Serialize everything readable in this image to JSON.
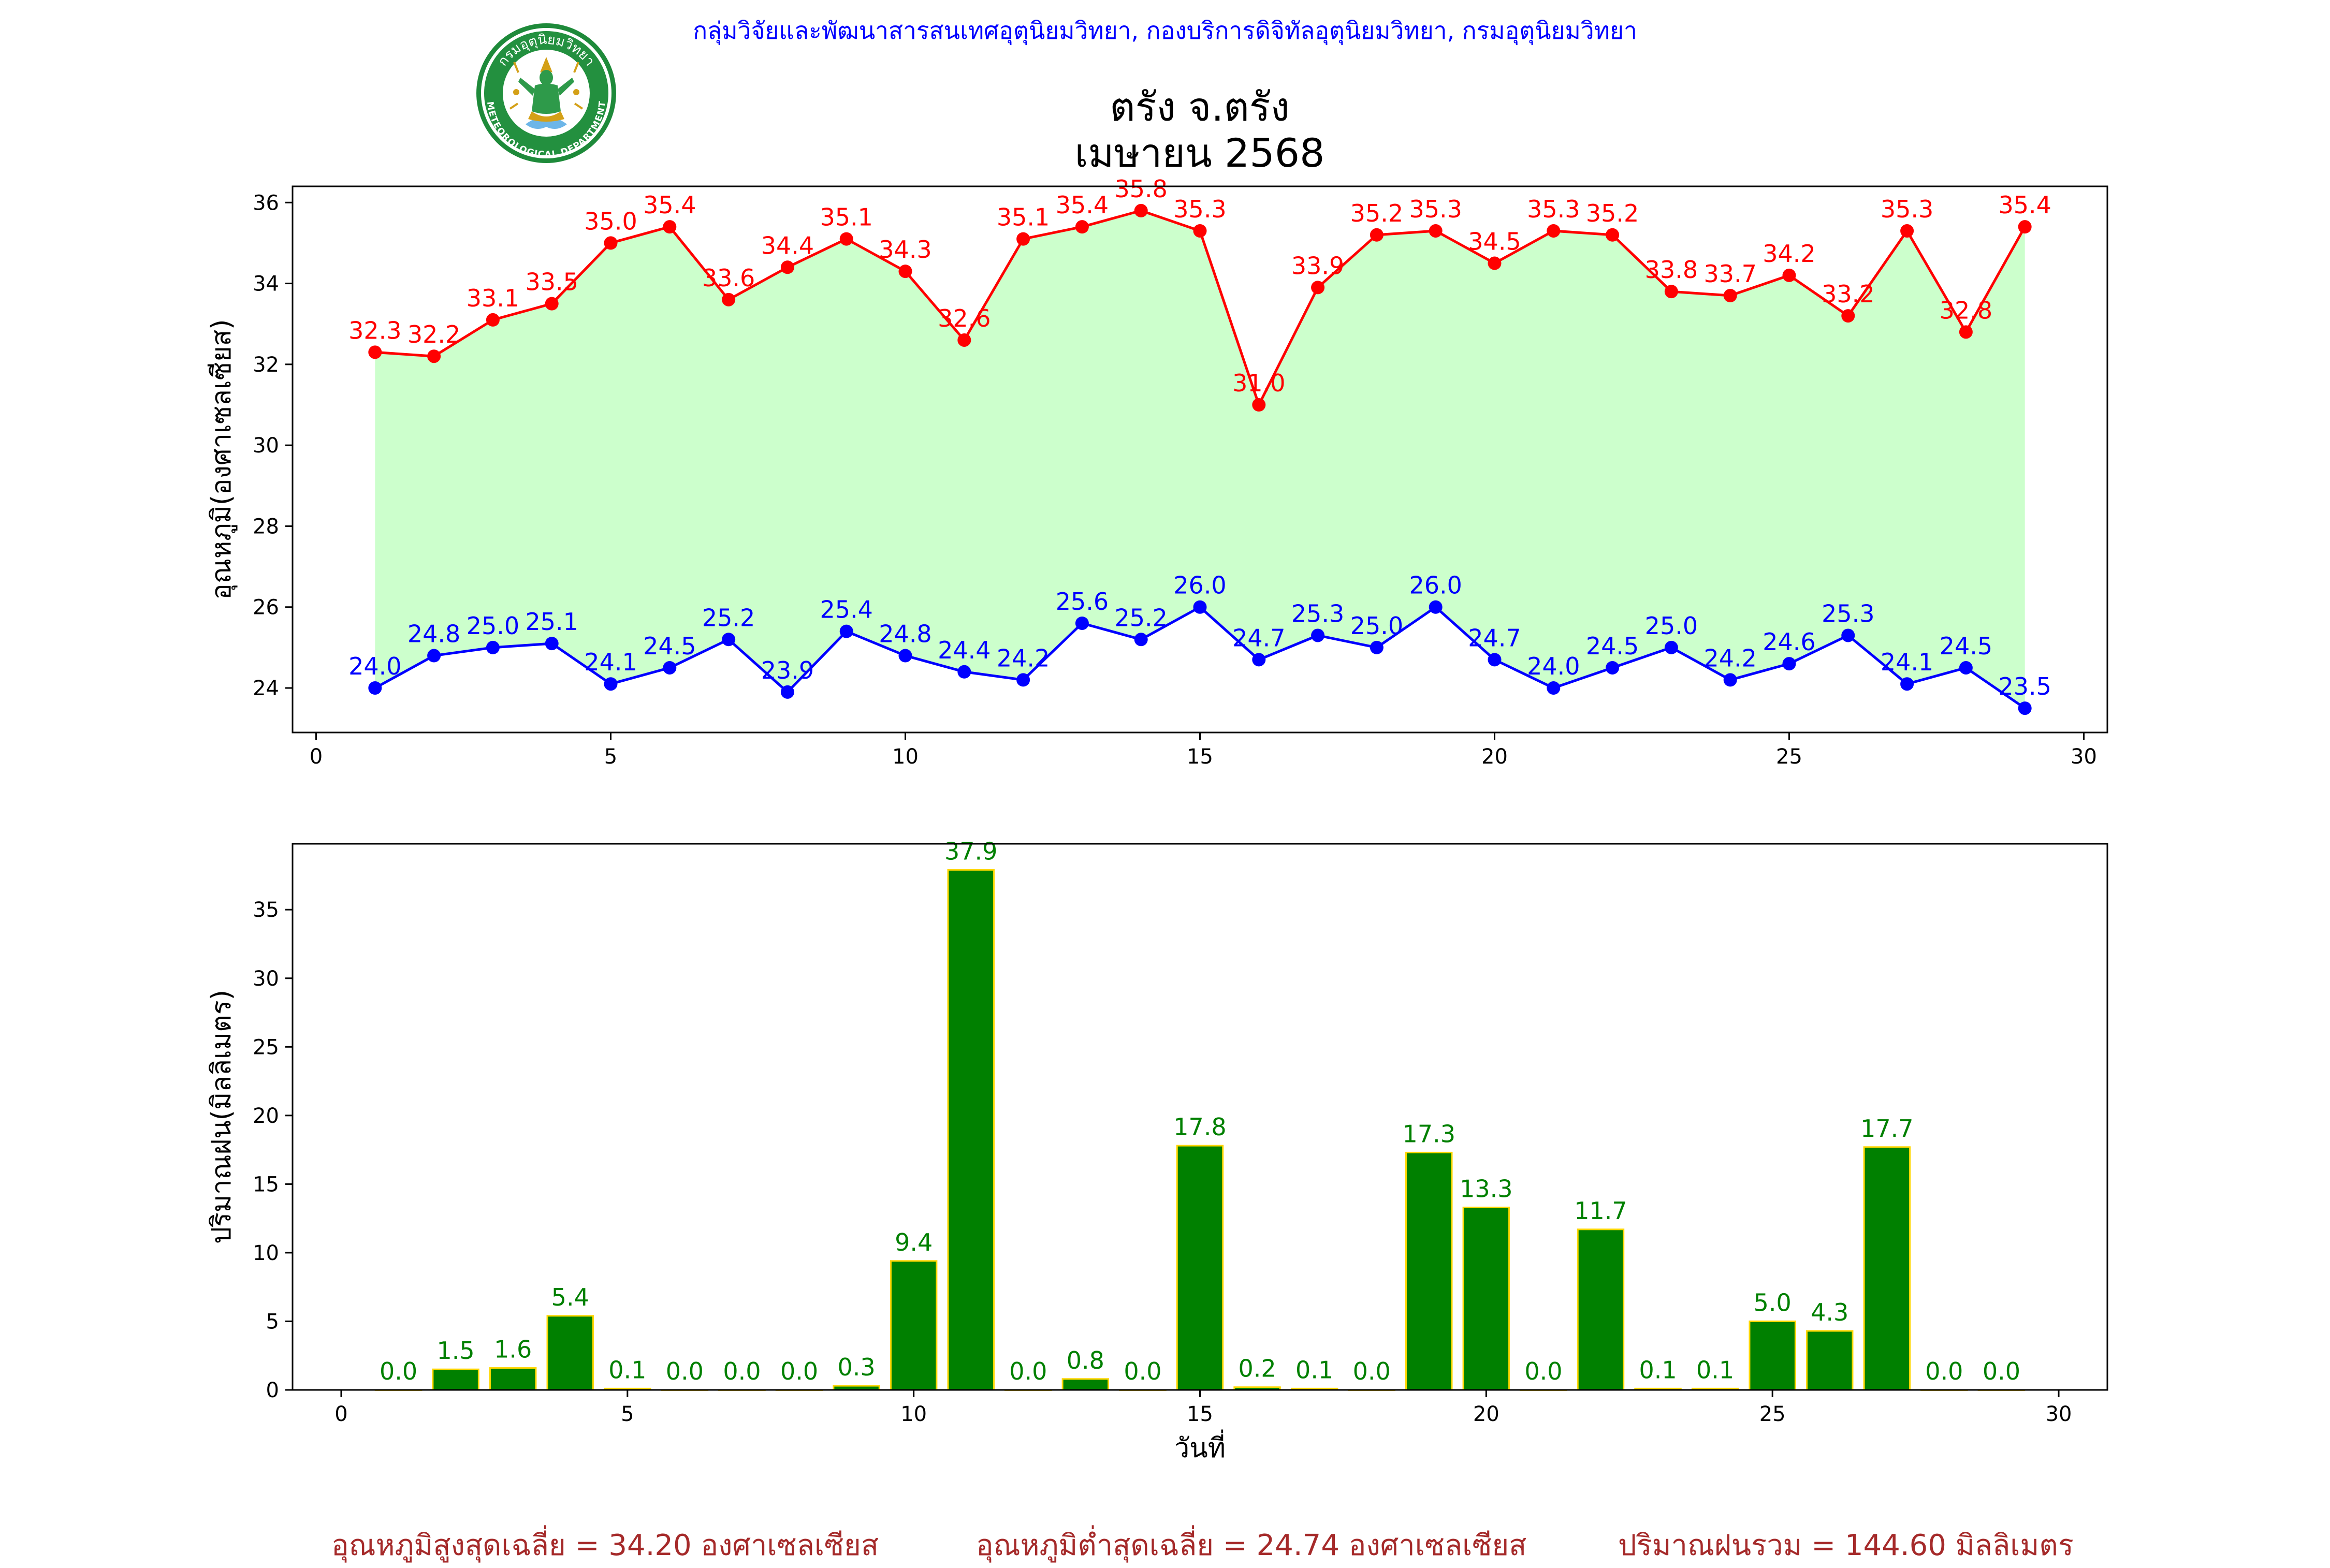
{
  "header": {
    "agency": "กลุ่มวิจัยและพัฒนาสารสนเทศอุตุนิยมวิทยา, กองบริการดิจิทัลอุตุนิยมวิทยา, กรมอุตุนิยมวิทยา",
    "station": "ตรัง จ.ตรัง",
    "period": "เมษายน 2568",
    "logo_text_top": "กรมอุตุนิยมวิทยา",
    "logo_text_bottom": "METEOROLOGICAL DEPARTMENT"
  },
  "footer": {
    "avg_max": "อุณหภูมิสูงสุดเฉลี่ย = 34.20 องศาเซลเซียส",
    "avg_min": "อุณหภูมิต่ำสุดเฉลี่ย = 24.74 องศาเซลเซียส",
    "total_rain": "ปริมาณฝนรวม = 144.60 มิลลิเมตร"
  },
  "colors": {
    "max_line": "#ff0000",
    "min_line": "#0000ff",
    "fill": "#ccffcc",
    "rain_bar": "#008000",
    "rain_edge": "#ffd700",
    "rain_label": "#008000",
    "agency_text": "#0000ff",
    "footer_text": "#a52a2a"
  },
  "chart_data": [
    {
      "type": "line",
      "x": [
        1,
        2,
        3,
        4,
        5,
        6,
        7,
        8,
        9,
        10,
        11,
        12,
        13,
        14,
        15,
        16,
        17,
        18,
        19,
        20,
        21,
        22,
        23,
        24,
        25,
        26,
        27,
        28,
        29
      ],
      "series": [
        {
          "values": [
            32.3,
            32.2,
            33.1,
            33.5,
            35.0,
            35.4,
            33.6,
            34.4,
            35.1,
            34.3,
            32.6,
            35.1,
            35.4,
            35.8,
            35.3,
            31.0,
            33.9,
            35.2,
            35.3,
            34.5,
            35.3,
            35.2,
            33.8,
            33.7,
            34.2,
            33.2,
            35.3,
            32.8,
            35.4
          ]
        },
        {
          "values": [
            24.0,
            24.8,
            25.0,
            25.1,
            24.1,
            24.5,
            25.2,
            23.9,
            25.4,
            24.8,
            24.4,
            24.2,
            25.6,
            25.2,
            26.0,
            24.7,
            25.3,
            25.0,
            26.0,
            24.7,
            24.0,
            24.5,
            25.0,
            24.2,
            24.6,
            25.3,
            24.1,
            24.5,
            23.5
          ]
        }
      ],
      "xlabel": "",
      "ylabel": "อุณหภูมิ(องศาเซลเซียส)",
      "xlim": [
        -0.4,
        30.4
      ],
      "ylim": [
        22.9,
        36.4
      ],
      "xticks": [
        0,
        5,
        10,
        15,
        20,
        25,
        30
      ],
      "yticks": [
        24,
        26,
        28,
        30,
        32,
        34,
        36
      ],
      "grid": false,
      "fill_between": true
    },
    {
      "type": "bar",
      "categories": [
        1,
        2,
        3,
        4,
        5,
        6,
        7,
        8,
        9,
        10,
        11,
        12,
        13,
        14,
        15,
        16,
        17,
        18,
        19,
        20,
        21,
        22,
        23,
        24,
        25,
        26,
        27,
        28,
        29
      ],
      "values": [
        0.0,
        1.5,
        1.6,
        5.4,
        0.1,
        0.0,
        0.0,
        0.0,
        0.3,
        9.4,
        37.9,
        0.0,
        0.8,
        0.0,
        17.8,
        0.2,
        0.1,
        0.0,
        17.3,
        13.3,
        0.0,
        11.7,
        0.1,
        0.1,
        5.0,
        4.3,
        17.7,
        0.0,
        0.0
      ],
      "xlabel": "วันที่",
      "ylabel": "ปริมาณฝน(มิลลิเมตร)",
      "xlim": [
        -0.85,
        30.85
      ],
      "ylim": [
        0,
        39.8
      ],
      "xticks": [
        0,
        5,
        10,
        15,
        20,
        25,
        30
      ],
      "yticks": [
        0,
        5,
        10,
        15,
        20,
        25,
        30,
        35
      ],
      "grid": false
    }
  ]
}
